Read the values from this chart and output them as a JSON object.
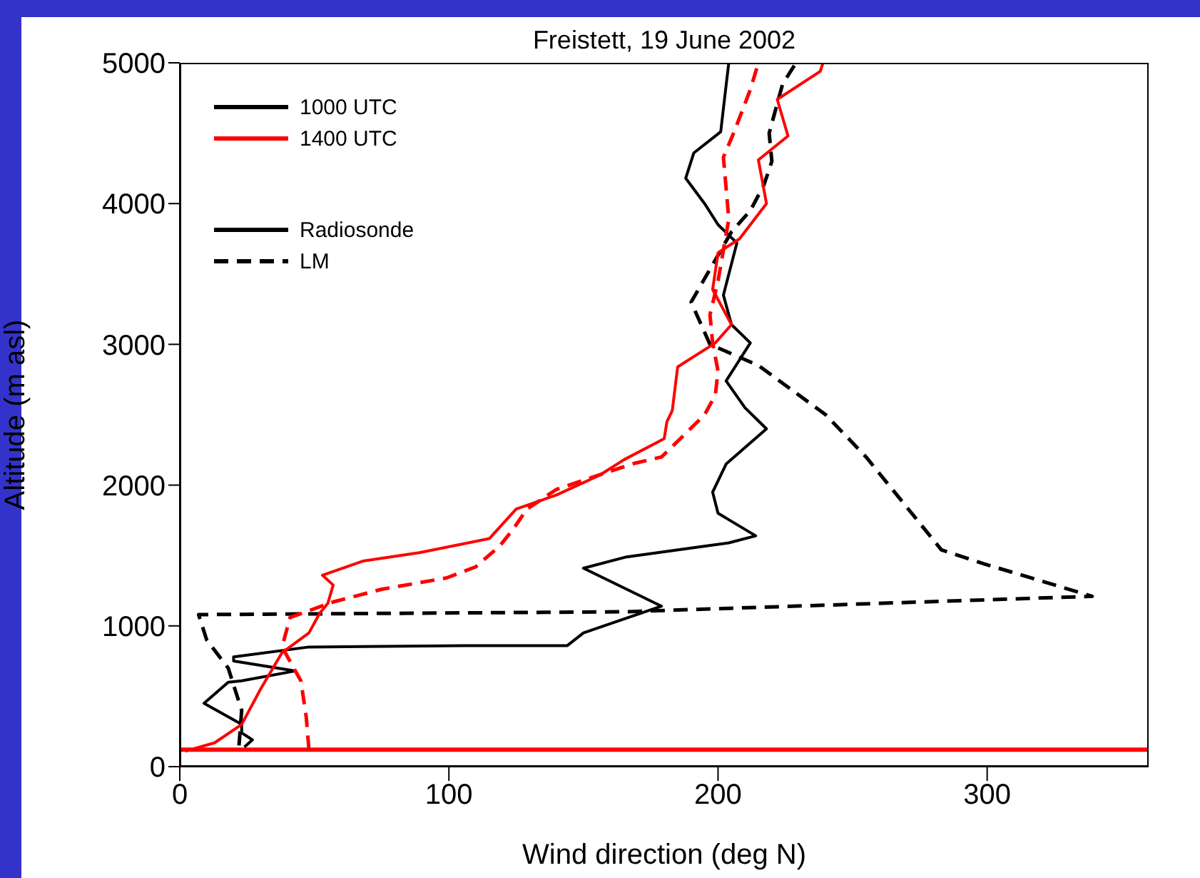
{
  "chart_data": {
    "type": "line",
    "title": "Freistett, 19 June 2002",
    "xlabel": "Wind direction (deg N)",
    "ylabel": "Altitude (m asl)",
    "xlim": [
      0,
      360
    ],
    "xticks": [
      0,
      100,
      200,
      300
    ],
    "ylim": [
      0,
      5000
    ],
    "yticks": [
      0,
      1000,
      2000,
      3000,
      4000,
      5000
    ],
    "legend": "top left",
    "marker": "none",
    "annotations": [
      "Radiosonde",
      "LM"
    ],
    "ref_lines": [
      {
        "axis": "y",
        "value": 120,
        "color": "#ff0000"
      }
    ],
    "series": [
      {
        "name": "1000 UTC",
        "color": "#000000",
        "line_style": "solid",
        "x": [
          24,
          27,
          23,
          23,
          9,
          18,
          23,
          43,
          20,
          20,
          48,
          106,
          144,
          150,
          179,
          150,
          166,
          204,
          214,
          200,
          198,
          203,
          218,
          210,
          203,
          212,
          205,
          202,
          207,
          200,
          195,
          188,
          191,
          201,
          203,
          204
        ],
        "values": [
          140,
          190,
          240,
          300,
          450,
          600,
          610,
          680,
          750,
          780,
          850,
          860,
          860,
          950,
          1140,
          1410,
          1490,
          1590,
          1640,
          1800,
          1950,
          2150,
          2400,
          2550,
          2740,
          3010,
          3140,
          3350,
          3720,
          3850,
          4000,
          4180,
          4360,
          4510,
          4840,
          5000
        ]
      },
      {
        "color": "#000000",
        "line_style": "dashed",
        "x": [
          22,
          23,
          18,
          10,
          7,
          165,
          339,
          299,
          283,
          255,
          240,
          215,
          197,
          190,
          196,
          205,
          212,
          217,
          220,
          219,
          224,
          229
        ],
        "values": [
          150,
          400,
          700,
          900,
          1080,
          1100,
          1210,
          1440,
          1540,
          2200,
          2500,
          2850,
          3000,
          3300,
          3500,
          3800,
          3950,
          4130,
          4300,
          4500,
          4850,
          5000
        ]
      },
      {
        "name": "1400 UTC",
        "color": "#ff0000",
        "line_style": "solid",
        "x": [
          2,
          13,
          23,
          30,
          38,
          48,
          52,
          55,
          57,
          53,
          68,
          89,
          115,
          125,
          140,
          156,
          165,
          180,
          181,
          183,
          185,
          199,
          205,
          198,
          200,
          208,
          218,
          215,
          226,
          222,
          238,
          239
        ],
        "values": [
          110,
          170,
          300,
          550,
          810,
          950,
          1090,
          1160,
          1290,
          1360,
          1460,
          1520,
          1620,
          1830,
          1930,
          2070,
          2180,
          2330,
          2450,
          2530,
          2840,
          3010,
          3140,
          3390,
          3650,
          3750,
          4000,
          4310,
          4480,
          4740,
          4940,
          5000
        ]
      },
      {
        "color": "#ff0000",
        "line_style": "dashed",
        "x": [
          48,
          47,
          45,
          38,
          41,
          57,
          75,
          99,
          110,
          119,
          124,
          129,
          140,
          168,
          179,
          186,
          195,
          199,
          200,
          198,
          197,
          200,
          204,
          202,
          206,
          212,
          215
        ],
        "values": [
          120,
          350,
          610,
          850,
          1060,
          1170,
          1260,
          1340,
          1420,
          1570,
          1690,
          1830,
          1970,
          2150,
          2200,
          2330,
          2500,
          2640,
          2810,
          3010,
          3210,
          3450,
          3890,
          4330,
          4510,
          4810,
          5000
        ]
      }
    ]
  }
}
